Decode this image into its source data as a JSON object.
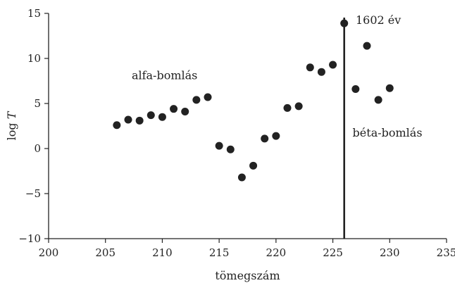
{
  "chart_data": {
    "type": "scatter",
    "xlabel": "tömegszám",
    "ylabel_prefix": "log ",
    "ylabel_var": "T",
    "xlim": [
      200,
      235
    ],
    "ylim": [
      -10,
      15
    ],
    "xticks": [
      200,
      205,
      210,
      215,
      220,
      225,
      230,
      235
    ],
    "yticks": [
      -10,
      -5,
      0,
      5,
      10,
      15
    ],
    "xtick_labels": [
      "200",
      "205",
      "210",
      "215",
      "220",
      "225",
      "230",
      "235"
    ],
    "ytick_labels": [
      "−10",
      "−5",
      "0",
      "5",
      "10",
      "15"
    ],
    "grid": false,
    "points": [
      {
        "x": 206,
        "y": 2.6
      },
      {
        "x": 207,
        "y": 3.2
      },
      {
        "x": 208,
        "y": 3.1
      },
      {
        "x": 209,
        "y": 3.7
      },
      {
        "x": 210,
        "y": 3.5
      },
      {
        "x": 211,
        "y": 4.4
      },
      {
        "x": 212,
        "y": 4.1
      },
      {
        "x": 213,
        "y": 5.4
      },
      {
        "x": 214,
        "y": 5.7
      },
      {
        "x": 215,
        "y": 0.3
      },
      {
        "x": 216,
        "y": -0.1
      },
      {
        "x": 217,
        "y": -3.2
      },
      {
        "x": 218,
        "y": -1.9
      },
      {
        "x": 219,
        "y": 1.1
      },
      {
        "x": 220,
        "y": 1.4
      },
      {
        "x": 221,
        "y": 4.5
      },
      {
        "x": 222,
        "y": 4.7
      },
      {
        "x": 223,
        "y": 9.0
      },
      {
        "x": 224,
        "y": 8.5
      },
      {
        "x": 225,
        "y": 9.3
      },
      {
        "x": 226,
        "y": 13.9
      },
      {
        "x": 227,
        "y": 6.6
      },
      {
        "x": 228,
        "y": 11.4
      },
      {
        "x": 229,
        "y": 5.4
      },
      {
        "x": 230,
        "y": 6.7
      }
    ],
    "vertical_line": {
      "x": 226
    },
    "annotations": [
      {
        "text": "alfa-bomlás",
        "x": 210.2,
        "y": 8.1
      },
      {
        "text": "béta-bomlás",
        "x": 229.8,
        "y": 1.7
      },
      {
        "text": "1602 év",
        "x": 229.0,
        "y": 14.2
      }
    ]
  }
}
